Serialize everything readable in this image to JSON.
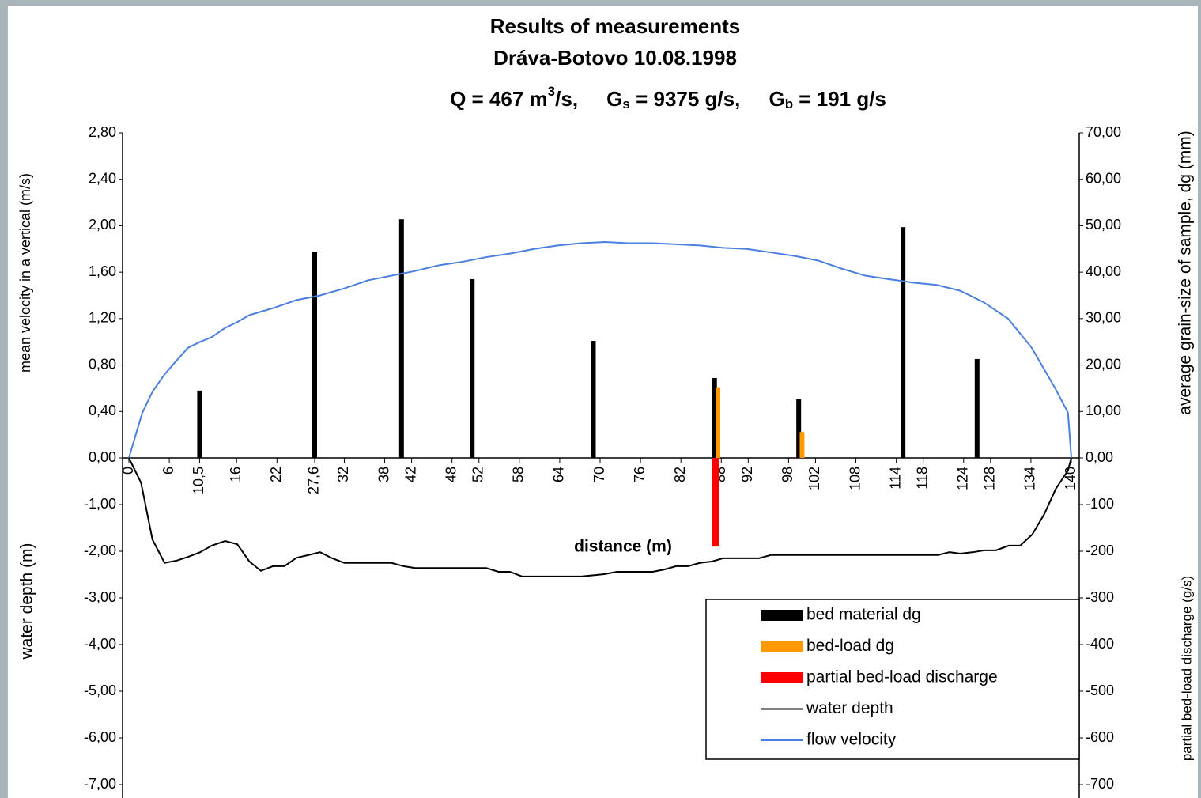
{
  "chart_data": [
    {
      "type": "combo",
      "title": [
        "Results of measurements",
        "Dráva-Botovo 10.08.1998"
      ],
      "subtitle": [
        {
          "text": "Q = 467 m"
        },
        {
          "text": "3",
          "script": "sup"
        },
        {
          "text": "/s,     G"
        },
        {
          "text": "s",
          "script": "sub"
        },
        {
          "text": " = 9375 g/s,     G"
        },
        {
          "text": "b",
          "script": "sub"
        },
        {
          "text": " = 191 g/s"
        }
      ],
      "xlabel": "distance (m)",
      "ylabel": "mean velocity in a vertical (m/s)",
      "y2label": "average grain-size of sample, dg (mm)",
      "xlim": [
        0,
        140
      ],
      "xticks": [
        0,
        6,
        {
          "value": 10.5,
          "label": "10,5"
        },
        16,
        22,
        {
          "value": 27.6,
          "label": "27,6"
        },
        32,
        38,
        42,
        48,
        52,
        58,
        64,
        70,
        76,
        82,
        88,
        92,
        98,
        102,
        108,
        114,
        118,
        124,
        128,
        134,
        140
      ],
      "ylim": [
        0,
        2.8
      ],
      "yticks": [
        {
          "value": 0,
          "label": "0,00"
        },
        {
          "value": 0.4,
          "label": "0,40"
        },
        {
          "value": 0.8,
          "label": "0,80"
        },
        {
          "value": 1.2,
          "label": "1,20"
        },
        {
          "value": 1.6,
          "label": "1,60"
        },
        {
          "value": 2.0,
          "label": "2,00"
        },
        {
          "value": 2.4,
          "label": "2,40"
        },
        {
          "value": 2.8,
          "label": "2,80"
        }
      ],
      "y2lim": [
        0,
        70
      ],
      "y2ticks": [
        {
          "value": 0,
          "label": "0,00"
        },
        {
          "value": 10,
          "label": "10,00"
        },
        {
          "value": 20,
          "label": "20,00"
        },
        {
          "value": 30,
          "label": "30,00"
        },
        {
          "value": 40,
          "label": "40,00"
        },
        {
          "value": 50,
          "label": "50,00"
        },
        {
          "value": 60,
          "label": "60,00"
        },
        {
          "value": 70,
          "label": "70,00"
        }
      ],
      "legend": "lower right",
      "series": [
        {
          "name": "bed material dg",
          "kind": "bar",
          "axis": "y2",
          "color": "#000000",
          "x": [
            10.5,
            27.6,
            40.5,
            51,
            69,
            87,
            99.5,
            115,
            126
          ],
          "values": [
            14.5,
            44.4,
            51.4,
            38.5,
            25.2,
            17.2,
            12.6,
            49.7,
            21.3
          ]
        },
        {
          "name": "bed-load dg",
          "kind": "bar",
          "axis": "y2",
          "color": "#ff9900",
          "x": [
            87.5,
            100
          ],
          "values": [
            15.2,
            5.6
          ]
        },
        {
          "name": "flow velocity",
          "kind": "line",
          "axis": "y",
          "color": "#4a7fe0",
          "x": [
            0,
            2,
            3.5,
            5.3,
            7.1,
            8.8,
            10.6,
            12.3,
            14.3,
            16.1,
            17.9,
            21.4,
            24.9,
            28.4,
            32,
            35.5,
            39,
            42.5,
            46.1,
            49.6,
            53.1,
            56.6,
            60.2,
            63.7,
            67.2,
            70.7,
            74.2,
            77.8,
            81.3,
            84.8,
            88.3,
            91.8,
            95.4,
            98.9,
            102.4,
            105.9,
            109.4,
            112.9,
            116.5,
            120,
            123.5,
            127,
            130.6,
            134.1,
            137.6,
            139.5,
            140
          ],
          "values": [
            0,
            0.39,
            0.57,
            0.72,
            0.84,
            0.95,
            1.0,
            1.04,
            1.12,
            1.17,
            1.23,
            1.29,
            1.36,
            1.4,
            1.46,
            1.53,
            1.57,
            1.61,
            1.66,
            1.69,
            1.73,
            1.76,
            1.8,
            1.83,
            1.85,
            1.86,
            1.85,
            1.85,
            1.84,
            1.83,
            1.81,
            1.8,
            1.77,
            1.74,
            1.7,
            1.63,
            1.57,
            1.54,
            1.51,
            1.49,
            1.44,
            1.34,
            1.2,
            0.95,
            0.6,
            0.39,
            0
          ]
        }
      ]
    },
    {
      "type": "combo",
      "ylabel": "water depth (m)",
      "y2label": "partial bed-load discharge (g/s)",
      "xlim": [
        0,
        140
      ],
      "ylim": [
        -7,
        0
      ],
      "yticks": [
        {
          "value": -7,
          "label": "-7,00"
        },
        {
          "value": -6,
          "label": "-6,00"
        },
        {
          "value": -5,
          "label": "-5,00"
        },
        {
          "value": -4,
          "label": "-4,00"
        },
        {
          "value": -3,
          "label": "-3,00"
        },
        {
          "value": -2,
          "label": "-2,00"
        },
        {
          "value": -1,
          "label": "-1,00"
        }
      ],
      "y2lim": [
        -700,
        0
      ],
      "y2ticks": [
        -700,
        -600,
        -500,
        -400,
        -300,
        -200,
        -100
      ],
      "series": [
        {
          "name": "partial bed-load discharge",
          "kind": "bar",
          "axis": "y2",
          "color": "#ff0000",
          "x": [
            87.2
          ],
          "values": [
            -190
          ]
        },
        {
          "name": "water depth",
          "kind": "line",
          "axis": "y",
          "color": "#000000",
          "x": [
            0,
            1.8,
            3.5,
            5.3,
            7.1,
            8.8,
            10.6,
            12.3,
            14.3,
            16.1,
            17.9,
            19.6,
            21.4,
            23.1,
            24.9,
            26.7,
            28.4,
            30.2,
            32,
            39,
            40.8,
            42.5,
            53.1,
            54.9,
            56.6,
            58.4,
            67.2,
            70.7,
            72.5,
            77.8,
            79.6,
            81.3,
            83.1,
            84.8,
            86.6,
            88.3,
            93.6,
            95.4,
            120.2,
            121.9,
            123.5,
            125.4,
            127.1,
            128.8,
            130.7,
            132.4,
            134.2,
            136,
            137.7,
            139.5,
            140
          ],
          "values": [
            0,
            -0.53,
            -1.75,
            -2.25,
            -2.2,
            -2.12,
            -2.02,
            -1.88,
            -1.78,
            -1.85,
            -2.22,
            -2.42,
            -2.32,
            -2.32,
            -2.14,
            -2.08,
            -2.02,
            -2.15,
            -2.25,
            -2.25,
            -2.32,
            -2.36,
            -2.36,
            -2.44,
            -2.44,
            -2.54,
            -2.54,
            -2.49,
            -2.44,
            -2.44,
            -2.39,
            -2.32,
            -2.32,
            -2.25,
            -2.22,
            -2.15,
            -2.15,
            -2.08,
            -2.08,
            -2.02,
            -2.05,
            -2.02,
            -1.98,
            -1.98,
            -1.88,
            -1.88,
            -1.64,
            -1.2,
            -0.66,
            -0.27,
            0
          ]
        }
      ]
    }
  ]
}
